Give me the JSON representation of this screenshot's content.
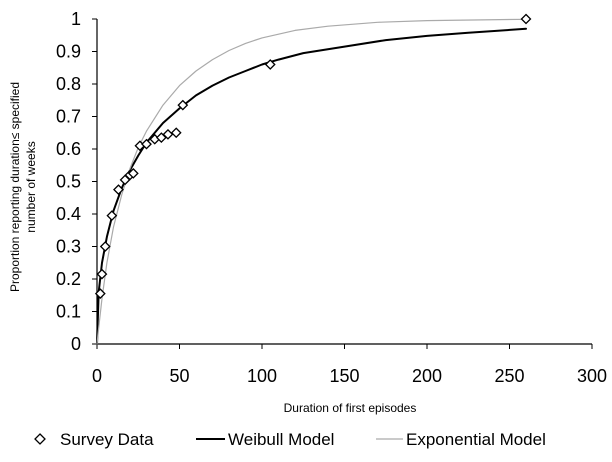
{
  "chart_data": {
    "type": "scatter",
    "xlabel": "Duration of first episodes",
    "ylabel_line1": "Proportion reporting duration≤ specified",
    "ylabel_line2": "number of weeks",
    "xlim": [
      0,
      300
    ],
    "ylim": [
      0,
      1
    ],
    "x_ticks": [
      "0",
      "50",
      "100",
      "150",
      "200",
      "250",
      "300"
    ],
    "y_ticks": [
      "0",
      "0.1",
      "0.2",
      "0.3",
      "0.4",
      "0.5",
      "0.6",
      "0.7",
      "0.8",
      "0.9",
      "1"
    ],
    "grid": false,
    "legend_position": "bottom",
    "series": [
      {
        "name": "Survey Data",
        "kind": "scatter",
        "marker": "diamond",
        "color": "#000000",
        "points": [
          [
            2,
            0.155
          ],
          [
            3,
            0.215
          ],
          [
            5,
            0.3
          ],
          [
            9,
            0.395
          ],
          [
            13,
            0.475
          ],
          [
            17,
            0.505
          ],
          [
            20,
            0.52
          ],
          [
            22,
            0.525
          ],
          [
            26,
            0.61
          ],
          [
            30,
            0.615
          ],
          [
            35,
            0.63
          ],
          [
            39,
            0.635
          ],
          [
            43,
            0.645
          ],
          [
            48,
            0.65
          ],
          [
            52,
            0.735
          ],
          [
            105,
            0.86
          ],
          [
            260,
            1.0
          ]
        ]
      },
      {
        "name": "Weibull Model",
        "kind": "line",
        "color": "#000000",
        "points": [
          [
            0,
            0.0
          ],
          [
            1,
            0.16
          ],
          [
            3,
            0.25
          ],
          [
            6,
            0.33
          ],
          [
            10,
            0.41
          ],
          [
            15,
            0.48
          ],
          [
            20,
            0.535
          ],
          [
            25,
            0.58
          ],
          [
            30,
            0.62
          ],
          [
            40,
            0.68
          ],
          [
            50,
            0.725
          ],
          [
            60,
            0.765
          ],
          [
            70,
            0.795
          ],
          [
            80,
            0.82
          ],
          [
            90,
            0.84
          ],
          [
            100,
            0.86
          ],
          [
            110,
            0.875
          ],
          [
            125,
            0.895
          ],
          [
            150,
            0.915
          ],
          [
            175,
            0.935
          ],
          [
            200,
            0.948
          ],
          [
            225,
            0.958
          ],
          [
            260,
            0.97
          ]
        ]
      },
      {
        "name": "Exponential Model",
        "kind": "line",
        "color": "#aaaaaa",
        "points": [
          [
            0,
            0.0
          ],
          [
            1,
            0.05
          ],
          [
            3,
            0.14
          ],
          [
            6,
            0.25
          ],
          [
            10,
            0.36
          ],
          [
            15,
            0.46
          ],
          [
            20,
            0.54
          ],
          [
            25,
            0.605
          ],
          [
            30,
            0.655
          ],
          [
            40,
            0.735
          ],
          [
            50,
            0.795
          ],
          [
            60,
            0.84
          ],
          [
            70,
            0.875
          ],
          [
            80,
            0.903
          ],
          [
            90,
            0.925
          ],
          [
            100,
            0.942
          ],
          [
            120,
            0.965
          ],
          [
            140,
            0.978
          ],
          [
            170,
            0.99
          ],
          [
            200,
            0.995
          ],
          [
            260,
            0.999
          ]
        ]
      }
    ]
  }
}
